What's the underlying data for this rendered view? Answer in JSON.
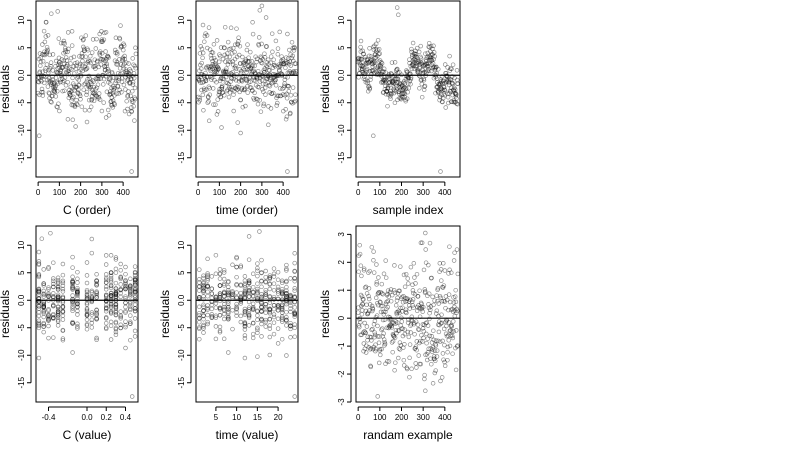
{
  "chart_data": [
    {
      "type": "scatter",
      "xlabel": "C (order)",
      "ylabel": "residuals",
      "xlim": [
        -10,
        470
      ],
      "ylim": [
        -18.5,
        13.5
      ],
      "x_ticks": [
        "0",
        "100",
        "200",
        "300",
        "400"
      ],
      "x_tick_values": [
        0,
        100,
        200,
        300,
        400
      ],
      "y_ticks": [
        "-15",
        "-10",
        "-5",
        "0.0",
        "5",
        "10"
      ],
      "y_tick_values": [
        -15,
        -10,
        -5,
        0,
        5,
        10
      ],
      "reference_line_y": 0,
      "point_count": 460,
      "pattern": "clustered_by_order",
      "points": [
        {
          "x": 62,
          "y": 11.2
        },
        {
          "x": 92,
          "y": 11.6
        },
        {
          "x": 160,
          "y": 8.0
        },
        {
          "x": 320,
          "y": 7.8
        },
        {
          "x": 5,
          "y": -11.0
        },
        {
          "x": 100,
          "y": -6.5
        },
        {
          "x": 140,
          "y": -8.0
        },
        {
          "x": 230,
          "y": -8.5
        },
        {
          "x": 300,
          "y": -6.5
        },
        {
          "x": 440,
          "y": -6.5
        },
        {
          "x": 440,
          "y": -17.5
        }
      ]
    },
    {
      "type": "scatter",
      "xlabel": "time (order)",
      "ylabel": "residuals",
      "xlim": [
        -10,
        470
      ],
      "ylim": [
        -18.5,
        13.5
      ],
      "x_ticks": [
        "0",
        "100",
        "200",
        "300",
        "400"
      ],
      "x_tick_values": [
        0,
        100,
        200,
        300,
        400
      ],
      "y_ticks": [
        "-15",
        "-10",
        "-5",
        "0.0",
        "5",
        "10"
      ],
      "y_tick_values": [
        -15,
        -10,
        -5,
        0,
        5,
        10
      ],
      "reference_line_y": 0,
      "point_count": 460,
      "pattern": "random_by_order",
      "points": [
        {
          "x": 290,
          "y": 11.8
        },
        {
          "x": 300,
          "y": 12.6
        },
        {
          "x": 320,
          "y": 10.5
        },
        {
          "x": 420,
          "y": 7.5
        },
        {
          "x": 110,
          "y": -9.5
        },
        {
          "x": 200,
          "y": -10.5
        },
        {
          "x": 330,
          "y": -9.0
        },
        {
          "x": 420,
          "y": -17.5
        }
      ]
    },
    {
      "type": "scatter",
      "xlabel": "sample index",
      "ylabel": "residuals",
      "xlim": [
        -10,
        470
      ],
      "ylim": [
        -18.5,
        13.5
      ],
      "x_ticks": [
        "0",
        "100",
        "200",
        "300",
        "400"
      ],
      "x_tick_values": [
        0,
        100,
        200,
        300,
        400
      ],
      "y_ticks": [
        "-15",
        "-10",
        "-5",
        "0.0",
        "5",
        "10"
      ],
      "y_tick_values": [
        -15,
        -10,
        -5,
        0,
        5,
        10
      ],
      "reference_line_y": 0,
      "point_count": 460,
      "pattern": "smooth_wave",
      "points": [
        {
          "x": 180,
          "y": 12.3
        },
        {
          "x": 185,
          "y": 11.0
        },
        {
          "x": 70,
          "y": -11.0
        },
        {
          "x": 380,
          "y": -17.5
        }
      ]
    },
    {
      "type": "scatter",
      "xlabel": "C (value)",
      "ylabel": "residuals",
      "xlim": [
        -0.53,
        0.53
      ],
      "ylim": [
        -18.5,
        13.5
      ],
      "x_ticks": [
        "-0.4",
        "0.0",
        "0.2",
        "0.4"
      ],
      "x_tick_values": [
        -0.4,
        0.0,
        0.2,
        0.4
      ],
      "y_ticks": [
        "-15",
        "-10",
        "-5",
        "0.0",
        "5",
        "10"
      ],
      "y_tick_values": [
        -15,
        -10,
        -5,
        0,
        5,
        10
      ],
      "reference_line_y": 0,
      "point_count": 460,
      "pattern": "discrete_columns",
      "x_levels": [
        -0.5,
        -0.45,
        -0.4,
        -0.35,
        -0.3,
        -0.25,
        -0.15,
        -0.1,
        0.0,
        0.05,
        0.1,
        0.2,
        0.25,
        0.3,
        0.35,
        0.4,
        0.45,
        0.5
      ],
      "points": [
        {
          "x": -0.47,
          "y": 11.2
        },
        {
          "x": -0.38,
          "y": 12.2
        },
        {
          "x": -0.5,
          "y": -10.5
        },
        {
          "x": -0.15,
          "y": -9.5
        },
        {
          "x": 0.47,
          "y": -17.5
        }
      ]
    },
    {
      "type": "scatter",
      "xlabel": "time (value)",
      "ylabel": "residuals",
      "xlim": [
        0.2,
        24.8
      ],
      "ylim": [
        -18.5,
        13.5
      ],
      "x_ticks": [
        "5",
        "10",
        "15",
        "20"
      ],
      "x_tick_values": [
        5,
        10,
        15,
        20
      ],
      "y_ticks": [
        "-15",
        "-10",
        "-5",
        "0.0",
        "5",
        "10"
      ],
      "y_tick_values": [
        -15,
        -10,
        -5,
        0,
        5,
        10
      ],
      "reference_line_y": 0,
      "point_count": 460,
      "pattern": "discrete_columns",
      "x_levels": [
        1,
        2,
        3,
        4,
        5,
        6,
        7,
        8,
        9,
        10,
        11,
        12,
        13,
        14,
        15,
        16,
        17,
        18,
        19,
        20,
        21,
        22,
        23,
        24
      ],
      "points": [
        {
          "x": 15.5,
          "y": 12.5
        },
        {
          "x": 13,
          "y": 11.6
        },
        {
          "x": 5,
          "y": 8.2
        },
        {
          "x": 12,
          "y": -10.5
        },
        {
          "x": 8,
          "y": -9.5
        },
        {
          "x": 24,
          "y": -17.5
        }
      ]
    },
    {
      "type": "scatter",
      "xlabel": "randam example",
      "ylabel": "residuals",
      "xlim": [
        -10,
        470
      ],
      "ylim": [
        -3.0,
        3.3
      ],
      "x_ticks": [
        "0",
        "100",
        "200",
        "300",
        "400"
      ],
      "x_tick_values": [
        0,
        100,
        200,
        300,
        400
      ],
      "y_ticks": [
        "-3",
        "-2",
        "-1",
        "0",
        "1",
        "2",
        "3"
      ],
      "y_tick_values": [
        -3,
        -2,
        -1,
        0,
        1,
        2,
        3
      ],
      "reference_line_y": 0,
      "point_count": 460,
      "pattern": "white_noise",
      "points": [
        {
          "x": 310,
          "y": 3.05
        },
        {
          "x": 90,
          "y": -2.8
        },
        {
          "x": 310,
          "y": -2.6
        }
      ]
    }
  ],
  "colors": {
    "point_stroke": "#000000",
    "point_opacity": 0.45,
    "axis": "#000000",
    "background": "#ffffff"
  }
}
